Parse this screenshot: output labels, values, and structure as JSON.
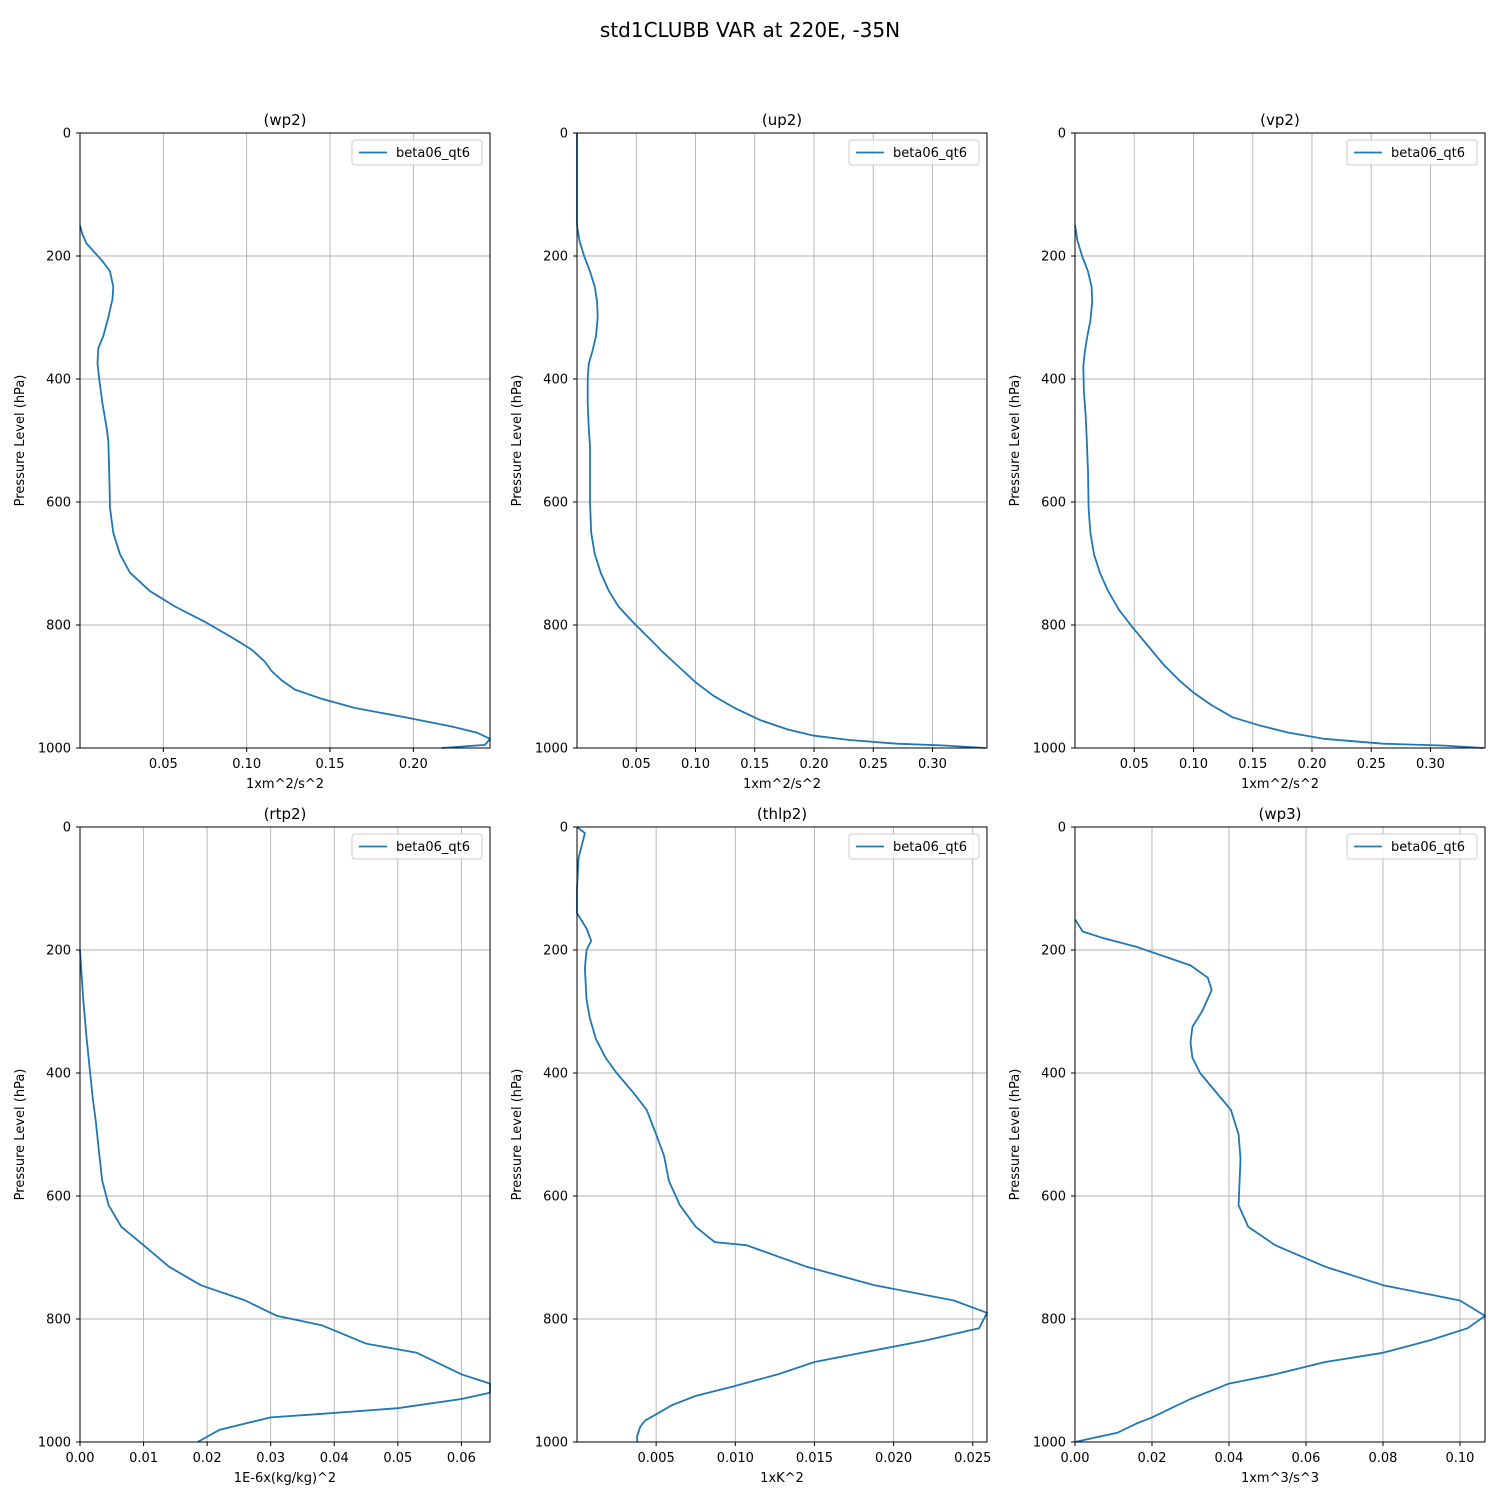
{
  "figure": {
    "title": "std1CLUBB VAR at 220E, -35N"
  },
  "chart_data": [
    {
      "type": "line",
      "title": "(wp2)",
      "xlabel": "1xm^2/s^2",
      "ylabel": "Pressure Level (hPa)",
      "xlim": [
        0,
        0.246
      ],
      "ylim": [
        1000,
        0
      ],
      "xticks": [
        0.05,
        0.1,
        0.15,
        0.2
      ],
      "xtick_labels": [
        "0.05",
        "0.10",
        "0.15",
        "0.20"
      ],
      "yticks": [
        0,
        200,
        400,
        600,
        800,
        1000
      ],
      "ytick_labels": [
        "0",
        "200",
        "400",
        "600",
        "800",
        "1000"
      ],
      "grid": true,
      "legend": "top-right",
      "series": [
        {
          "name": "beta06_qt6",
          "color": "#1f77b4",
          "x": [
            0.0,
            0.0015,
            0.004,
            0.009,
            0.014,
            0.018,
            0.02,
            0.0195,
            0.017,
            0.014,
            0.011,
            0.0105,
            0.0115,
            0.0135,
            0.016,
            0.017,
            0.0175,
            0.018,
            0.02,
            0.024,
            0.03,
            0.042,
            0.057,
            0.075,
            0.091,
            0.103,
            0.111,
            0.115,
            0.121,
            0.129,
            0.145,
            0.165,
            0.195,
            0.223,
            0.238,
            0.246,
            0.243,
            0.217
          ],
          "y": [
            150,
            165,
            180,
            195,
            210,
            225,
            250,
            270,
            300,
            330,
            350,
            375,
            400,
            440,
            480,
            500,
            550,
            610,
            650,
            685,
            715,
            745,
            770,
            795,
            820,
            840,
            860,
            875,
            890,
            905,
            920,
            935,
            950,
            965,
            975,
            985,
            995,
            1000
          ]
        }
      ]
    },
    {
      "type": "line",
      "title": "(up2)",
      "xlabel": "1xm^2/s^2",
      "ylabel": "Pressure Level (hPa)",
      "xlim": [
        0,
        0.346
      ],
      "ylim": [
        1000,
        0
      ],
      "xticks": [
        0.05,
        0.1,
        0.15,
        0.2,
        0.25,
        0.3
      ],
      "xtick_labels": [
        "0.05",
        "0.10",
        "0.15",
        "0.20",
        "0.25",
        "0.30"
      ],
      "yticks": [
        0,
        200,
        400,
        600,
        800,
        1000
      ],
      "ytick_labels": [
        "0",
        "200",
        "400",
        "600",
        "800",
        "1000"
      ],
      "grid": true,
      "legend": "top-right",
      "series": [
        {
          "name": "beta06_qt6",
          "color": "#1f77b4",
          "x": [
            0.0,
            0.0,
            0.002,
            0.006,
            0.011,
            0.015,
            0.017,
            0.0175,
            0.016,
            0.013,
            0.01,
            0.009,
            0.009,
            0.01,
            0.011,
            0.011,
            0.011,
            0.012,
            0.015,
            0.02,
            0.027,
            0.035,
            0.047,
            0.06,
            0.073,
            0.087,
            0.1,
            0.115,
            0.133,
            0.155,
            0.178,
            0.2,
            0.23,
            0.27,
            0.31,
            0.345
          ],
          "y": [
            0,
            150,
            175,
            200,
            225,
            250,
            275,
            300,
            330,
            355,
            375,
            400,
            440,
            480,
            510,
            550,
            600,
            650,
            685,
            715,
            745,
            770,
            795,
            820,
            845,
            870,
            893,
            915,
            935,
            955,
            970,
            980,
            987,
            993,
            996,
            1000
          ]
        }
      ]
    },
    {
      "type": "line",
      "title": "(vp2)",
      "xlabel": "1xm^2/s^2",
      "ylabel": "Pressure Level (hPa)",
      "xlim": [
        0,
        0.346
      ],
      "ylim": [
        1000,
        0
      ],
      "xticks": [
        0.05,
        0.1,
        0.15,
        0.2,
        0.25,
        0.3
      ],
      "xtick_labels": [
        "0.05",
        "0.10",
        "0.15",
        "0.20",
        "0.25",
        "0.30"
      ],
      "yticks": [
        0,
        200,
        400,
        600,
        800,
        1000
      ],
      "ytick_labels": [
        "0",
        "200",
        "400",
        "600",
        "800",
        "1000"
      ],
      "grid": true,
      "legend": "top-right",
      "series": [
        {
          "name": "beta06_qt6",
          "color": "#1f77b4",
          "x": [
            0.0,
            0.002,
            0.006,
            0.011,
            0.014,
            0.0145,
            0.013,
            0.01,
            0.008,
            0.007,
            0.0075,
            0.009,
            0.01,
            0.011,
            0.0115,
            0.013,
            0.016,
            0.021,
            0.028,
            0.037,
            0.049,
            0.062,
            0.075,
            0.088,
            0.1,
            0.115,
            0.133,
            0.155,
            0.18,
            0.21,
            0.26,
            0.31,
            0.345
          ],
          "y": [
            150,
            175,
            200,
            225,
            250,
            275,
            305,
            335,
            360,
            380,
            420,
            460,
            500,
            550,
            610,
            650,
            685,
            715,
            745,
            775,
            805,
            835,
            865,
            890,
            910,
            930,
            950,
            963,
            975,
            985,
            993,
            996,
            1000
          ]
        }
      ]
    },
    {
      "type": "line",
      "title": "(rtp2)",
      "xlabel": "1E-6x(kg/kg)^2",
      "ylabel": "Pressure Level (hPa)",
      "xlim": [
        0,
        0.0645
      ],
      "ylim": [
        1000,
        0
      ],
      "xticks": [
        0.0,
        0.01,
        0.02,
        0.03,
        0.04,
        0.05,
        0.06
      ],
      "xtick_labels": [
        "0.00",
        "0.01",
        "0.02",
        "0.03",
        "0.04",
        "0.05",
        "0.06"
      ],
      "yticks": [
        0,
        200,
        400,
        600,
        800,
        1000
      ],
      "ytick_labels": [
        "0",
        "200",
        "400",
        "600",
        "800",
        "1000"
      ],
      "grid": true,
      "legend": "top-right",
      "series": [
        {
          "name": "beta06_qt6",
          "color": "#1f77b4",
          "x": [
            0.0,
            0.0005,
            0.001,
            0.0015,
            0.002,
            0.0025,
            0.003,
            0.0035,
            0.0045,
            0.0065,
            0.01,
            0.014,
            0.019,
            0.026,
            0.031,
            0.038,
            0.045,
            0.053,
            0.06,
            0.0645,
            0.0645,
            0.06,
            0.05,
            0.037,
            0.03,
            0.026,
            0.022,
            0.0185
          ],
          "y": [
            200,
            280,
            340,
            390,
            440,
            480,
            530,
            575,
            615,
            650,
            680,
            715,
            745,
            770,
            795,
            810,
            840,
            855,
            890,
            905,
            920,
            930,
            945,
            955,
            960,
            970,
            980,
            1000
          ]
        }
      ]
    },
    {
      "type": "line",
      "title": "(thlp2)",
      "xlabel": "1xK^2",
      "ylabel": "Pressure Level (hPa)",
      "xlim": [
        0,
        0.0259
      ],
      "ylim": [
        1000,
        0
      ],
      "xticks": [
        0.005,
        0.01,
        0.015,
        0.02,
        0.025
      ],
      "xtick_labels": [
        "0.005",
        "0.010",
        "0.015",
        "0.020",
        "0.025"
      ],
      "yticks": [
        0,
        200,
        400,
        600,
        800,
        1000
      ],
      "ytick_labels": [
        "0",
        "200",
        "400",
        "600",
        "800",
        "1000"
      ],
      "grid": true,
      "legend": "top-right",
      "series": [
        {
          "name": "beta06_qt6",
          "color": "#1f77b4",
          "x": [
            0.0,
            0.0005,
            0.0001,
            0.0,
            0.0,
            0.0006,
            0.0009,
            0.0006,
            0.0005,
            0.0006,
            0.0008,
            0.0012,
            0.0018,
            0.0025,
            0.0035,
            0.0044,
            0.005,
            0.0055,
            0.0058,
            0.0065,
            0.0075,
            0.0087,
            0.0107,
            0.0145,
            0.0188,
            0.0238,
            0.0259,
            0.0254,
            0.022,
            0.018,
            0.015,
            0.0127,
            0.0098,
            0.0075,
            0.006,
            0.005,
            0.0043,
            0.004,
            0.0038,
            0.0038
          ],
          "y": [
            0,
            10,
            50,
            100,
            140,
            165,
            185,
            200,
            230,
            280,
            310,
            345,
            375,
            400,
            430,
            460,
            500,
            535,
            575,
            615,
            650,
            675,
            680,
            715,
            745,
            770,
            790,
            815,
            835,
            855,
            870,
            890,
            910,
            925,
            940,
            955,
            965,
            975,
            990,
            1000
          ]
        }
      ]
    },
    {
      "type": "line",
      "title": "(wp3)",
      "xlabel": "1xm^3/s^3",
      "ylabel": "Pressure Level (hPa)",
      "xlim": [
        0,
        0.1065
      ],
      "ylim": [
        1000,
        0
      ],
      "xticks": [
        0.0,
        0.02,
        0.04,
        0.06,
        0.08,
        0.1
      ],
      "xtick_labels": [
        "0.00",
        "0.02",
        "0.04",
        "0.06",
        "0.08",
        "0.10"
      ],
      "yticks": [
        0,
        200,
        400,
        600,
        800,
        1000
      ],
      "ytick_labels": [
        "0",
        "200",
        "400",
        "600",
        "800",
        "1000"
      ],
      "grid": true,
      "legend": "top-right",
      "series": [
        {
          "name": "beta06_qt6",
          "color": "#1f77b4",
          "x": [
            0.0,
            0.002,
            0.007,
            0.016,
            0.023,
            0.03,
            0.0345,
            0.0355,
            0.033,
            0.0305,
            0.03,
            0.0305,
            0.0325,
            0.0365,
            0.0405,
            0.0425,
            0.043,
            0.0425,
            0.045,
            0.052,
            0.065,
            0.08,
            0.1,
            0.1065,
            0.102,
            0.092,
            0.08,
            0.065,
            0.052,
            0.04,
            0.034,
            0.03,
            0.025,
            0.02,
            0.016,
            0.011,
            0.005,
            0.0
          ],
          "y": [
            150,
            170,
            180,
            195,
            210,
            225,
            245,
            265,
            300,
            325,
            350,
            375,
            400,
            430,
            460,
            500,
            540,
            615,
            650,
            680,
            715,
            745,
            770,
            795,
            815,
            835,
            855,
            870,
            890,
            905,
            920,
            930,
            945,
            960,
            970,
            985,
            993,
            1000
          ]
        }
      ]
    }
  ]
}
